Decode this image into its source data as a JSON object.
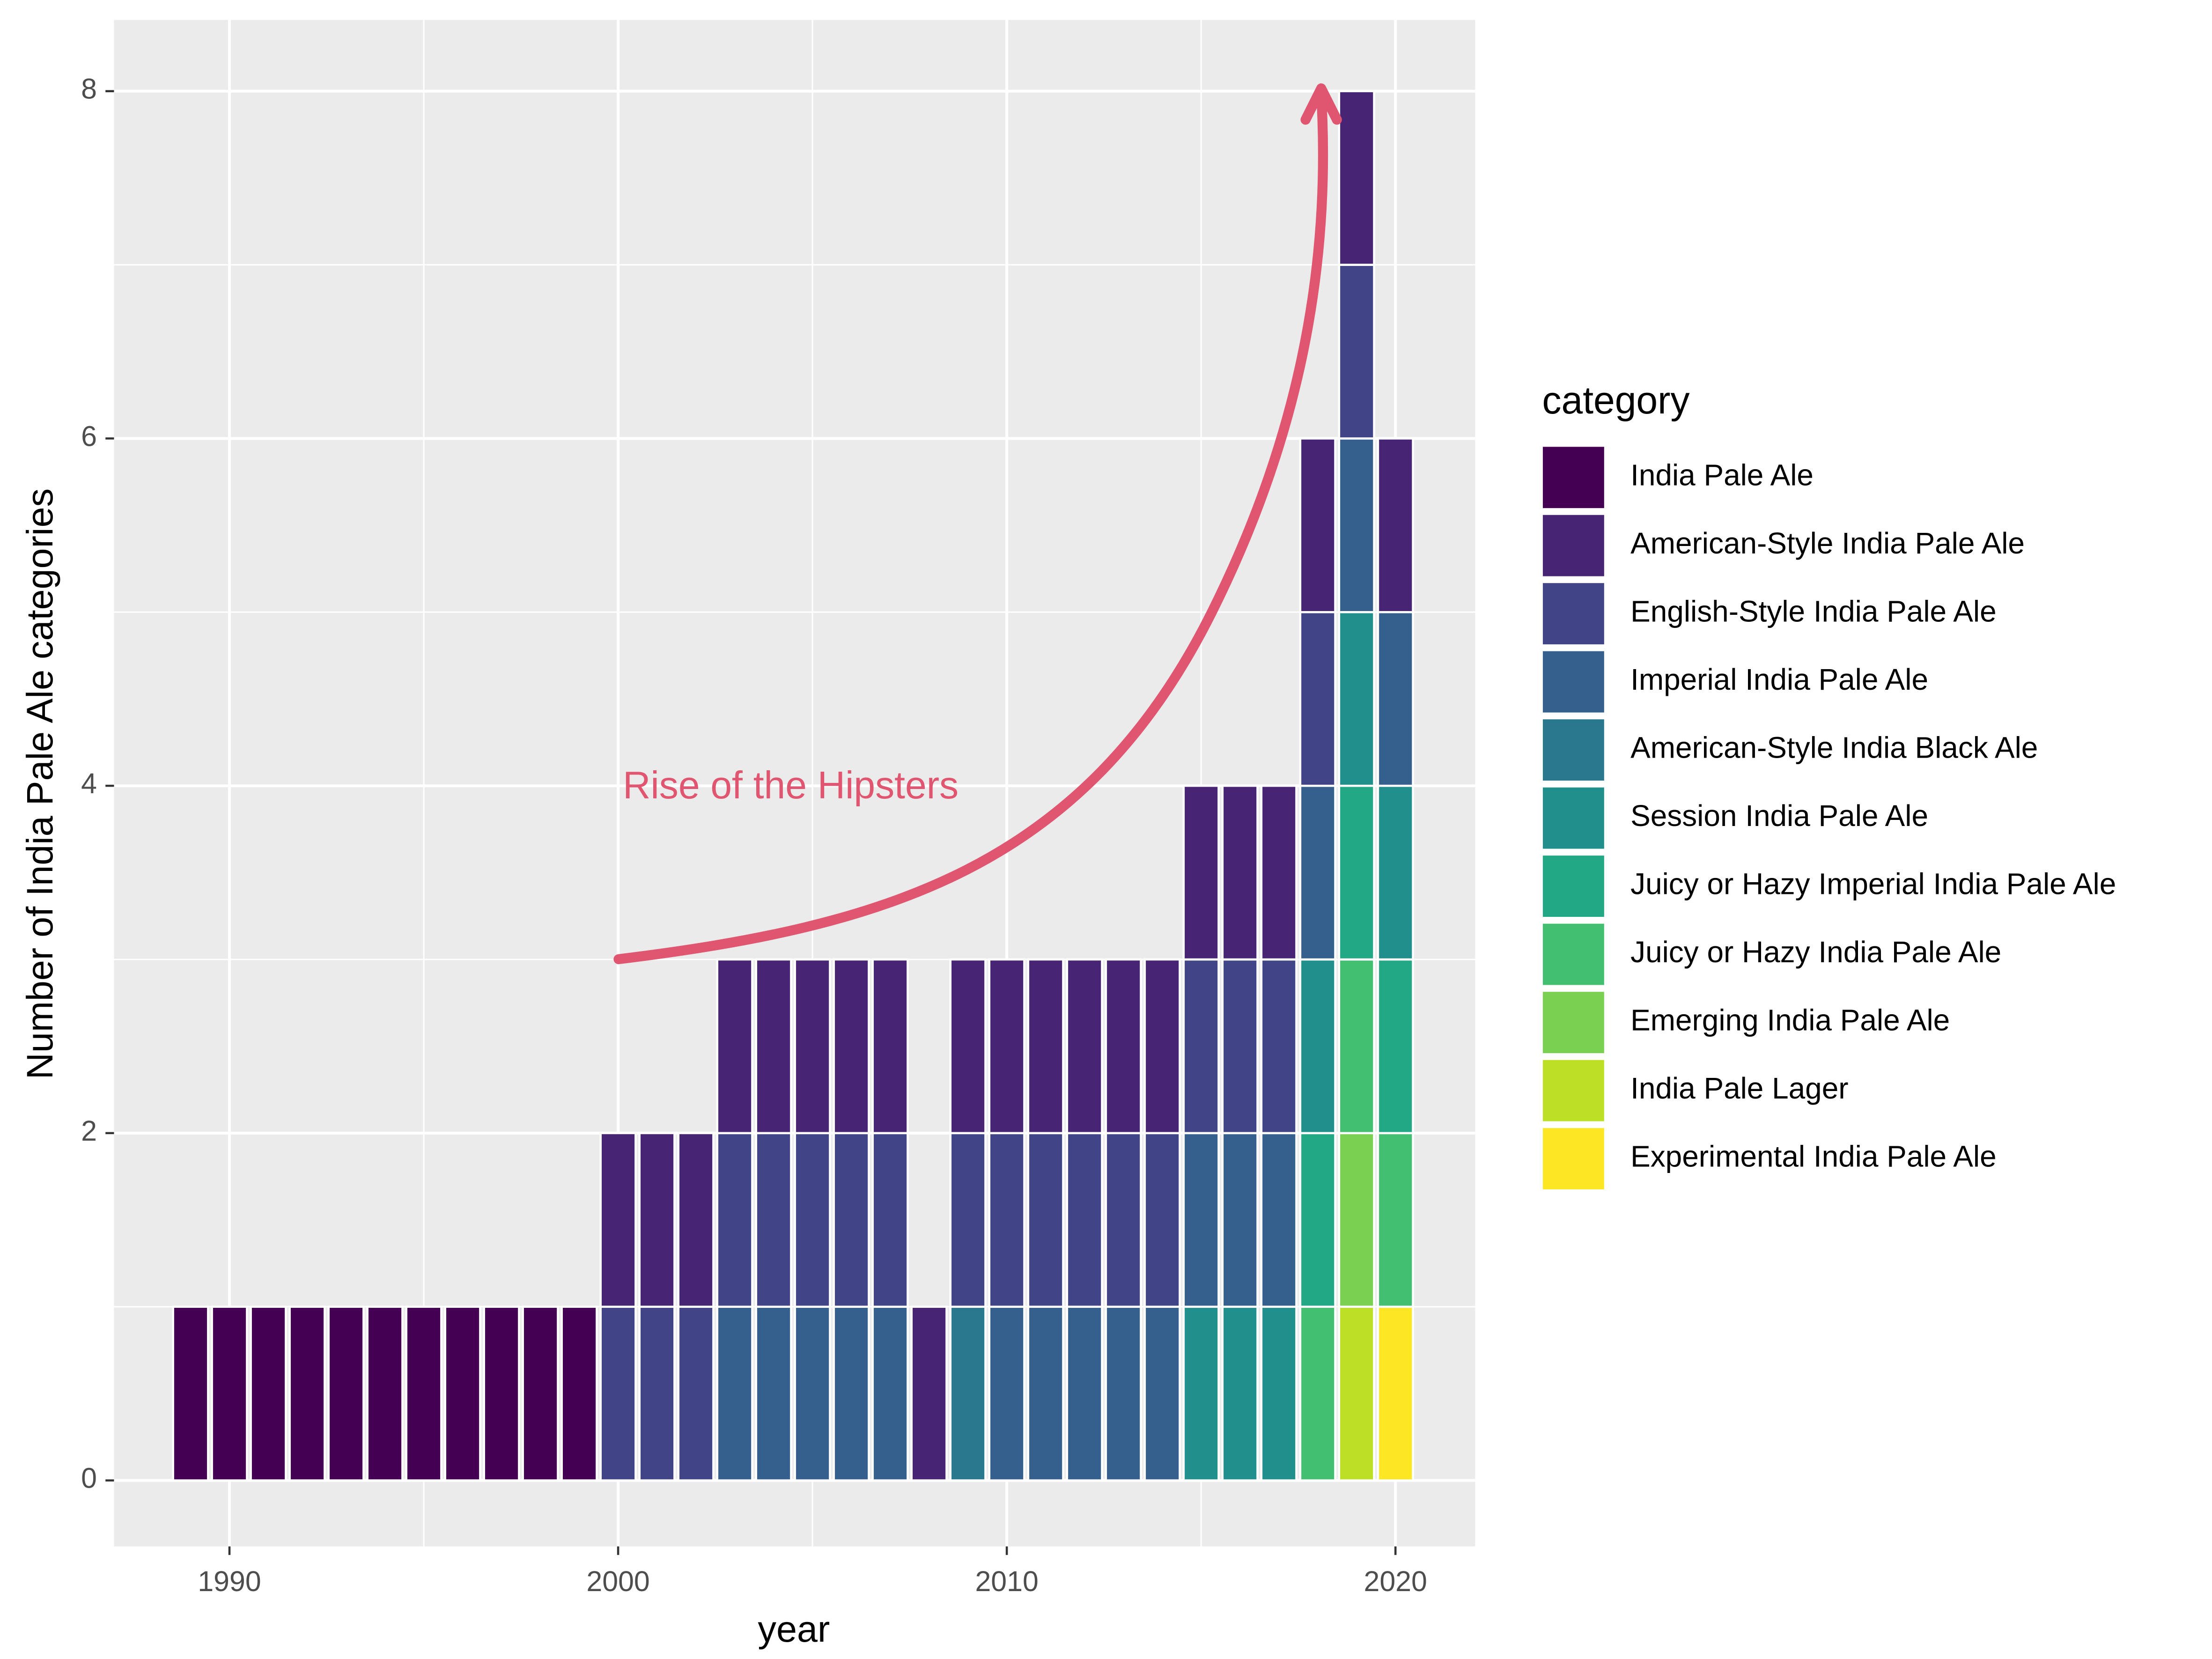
{
  "chart_data": {
    "type": "stacked-bar",
    "x_label": "year",
    "y_label": "Number of India Pale Ale categories",
    "legend_title": "category",
    "annotation": "Rise of the Hipsters",
    "annotation_color": "#e05570",
    "x": [
      1989,
      1990,
      1991,
      1992,
      1993,
      1994,
      1995,
      1996,
      1997,
      1998,
      1999,
      2000,
      2001,
      2002,
      2003,
      2004,
      2005,
      2006,
      2007,
      2008,
      2009,
      2010,
      2011,
      2012,
      2013,
      2014,
      2015,
      2016,
      2017,
      2018,
      2019,
      2020
    ],
    "xlim": [
      1987.03,
      2022.05
    ],
    "xticks": [
      1990,
      2000,
      2010,
      2020
    ],
    "ylim": [
      -0.38,
      8.41
    ],
    "yticks": [
      0,
      2,
      4,
      6,
      8
    ],
    "grid": true,
    "legend_position": "right",
    "series": [
      {
        "name": "India Pale Ale",
        "color": "#440154",
        "values": [
          1,
          1,
          1,
          1,
          1,
          1,
          1,
          1,
          1,
          1,
          1,
          0,
          0,
          0,
          0,
          0,
          0,
          0,
          0,
          0,
          0,
          0,
          0,
          0,
          0,
          0,
          0,
          0,
          0,
          0,
          0,
          0
        ]
      },
      {
        "name": "American-Style India Pale Ale",
        "color": "#482475",
        "values": [
          0,
          0,
          0,
          0,
          0,
          0,
          0,
          0,
          0,
          0,
          0,
          1,
          1,
          1,
          1,
          1,
          1,
          1,
          1,
          1,
          1,
          1,
          1,
          1,
          1,
          1,
          1,
          1,
          1,
          1,
          1,
          1
        ]
      },
      {
        "name": "English-Style India Pale Ale",
        "color": "#414487",
        "values": [
          0,
          0,
          0,
          0,
          0,
          0,
          0,
          0,
          0,
          0,
          0,
          1,
          1,
          1,
          1,
          1,
          1,
          1,
          1,
          0,
          1,
          1,
          1,
          1,
          1,
          1,
          1,
          1,
          1,
          1,
          1,
          0
        ]
      },
      {
        "name": "Imperial India Pale Ale",
        "color": "#355f8d",
        "values": [
          0,
          0,
          0,
          0,
          0,
          0,
          0,
          0,
          0,
          0,
          0,
          0,
          0,
          0,
          1,
          1,
          1,
          1,
          1,
          0,
          0,
          1,
          1,
          1,
          1,
          1,
          1,
          1,
          1,
          1,
          1,
          1
        ]
      },
      {
        "name": "American-Style India Black Ale",
        "color": "#2a788e",
        "values": [
          0,
          0,
          0,
          0,
          0,
          0,
          0,
          0,
          0,
          0,
          0,
          0,
          0,
          0,
          0,
          0,
          0,
          0,
          0,
          0,
          1,
          0,
          0,
          0,
          0,
          0,
          0,
          0,
          0,
          0,
          0,
          0
        ]
      },
      {
        "name": "Session India Pale Ale",
        "color": "#21908d",
        "values": [
          0,
          0,
          0,
          0,
          0,
          0,
          0,
          0,
          0,
          0,
          0,
          0,
          0,
          0,
          0,
          0,
          0,
          0,
          0,
          0,
          0,
          0,
          0,
          0,
          0,
          0,
          1,
          1,
          1,
          1,
          1,
          1
        ]
      },
      {
        "name": "Juicy or Hazy Imperial India Pale Ale",
        "color": "#22a884",
        "values": [
          0,
          0,
          0,
          0,
          0,
          0,
          0,
          0,
          0,
          0,
          0,
          0,
          0,
          0,
          0,
          0,
          0,
          0,
          0,
          0,
          0,
          0,
          0,
          0,
          0,
          0,
          0,
          0,
          0,
          1,
          1,
          1
        ]
      },
      {
        "name": "Juicy or Hazy India Pale Ale",
        "color": "#43bf71",
        "values": [
          0,
          0,
          0,
          0,
          0,
          0,
          0,
          0,
          0,
          0,
          0,
          0,
          0,
          0,
          0,
          0,
          0,
          0,
          0,
          0,
          0,
          0,
          0,
          0,
          0,
          0,
          0,
          0,
          0,
          1,
          1,
          1
        ]
      },
      {
        "name": "Emerging India Pale Ale",
        "color": "#7ad151",
        "values": [
          0,
          0,
          0,
          0,
          0,
          0,
          0,
          0,
          0,
          0,
          0,
          0,
          0,
          0,
          0,
          0,
          0,
          0,
          0,
          0,
          0,
          0,
          0,
          0,
          0,
          0,
          0,
          0,
          0,
          0,
          1,
          0
        ]
      },
      {
        "name": "India Pale Lager",
        "color": "#bddf26",
        "values": [
          0,
          0,
          0,
          0,
          0,
          0,
          0,
          0,
          0,
          0,
          0,
          0,
          0,
          0,
          0,
          0,
          0,
          0,
          0,
          0,
          0,
          0,
          0,
          0,
          0,
          0,
          0,
          0,
          0,
          0,
          1,
          0
        ]
      },
      {
        "name": "Experimental India Pale Ale",
        "color": "#fde725",
        "values": [
          0,
          0,
          0,
          0,
          0,
          0,
          0,
          0,
          0,
          0,
          0,
          0,
          0,
          0,
          0,
          0,
          0,
          0,
          0,
          0,
          0,
          0,
          0,
          0,
          0,
          0,
          0,
          0,
          0,
          0,
          0,
          1
        ]
      }
    ]
  }
}
